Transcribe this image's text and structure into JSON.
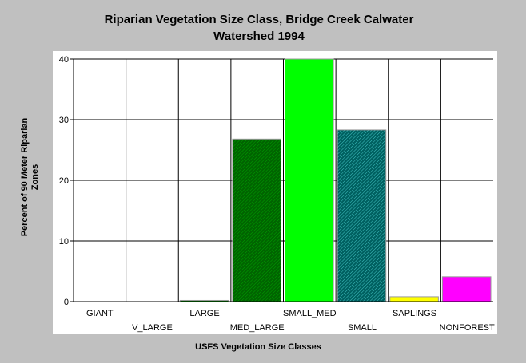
{
  "chart_data": {
    "type": "bar",
    "title_line1": "Riparian Vegetation Size Class, Bridge Creek Calwater",
    "title_line2": "Watershed 1994",
    "xlabel": "USFS Vegetation Size Classes",
    "ylabel_line1": "Percent of 90 Meter Riparian",
    "ylabel_line2": "Zones",
    "ylim": [
      0,
      40
    ],
    "yticks": [
      "0",
      "10",
      "20",
      "30",
      "40"
    ],
    "grid": true,
    "categories": [
      "GIANT",
      "V_LARGE",
      "LARGE",
      "MED_LARGE",
      "SMALL_MED",
      "SMALL",
      "SAPLINGS",
      "NONFOREST"
    ],
    "values": [
      0,
      0,
      0.2,
      26.8,
      40,
      28.3,
      0.8,
      4.1
    ],
    "colors": [
      "#008000",
      "#008000",
      "#008000",
      "#008000",
      "#00ff00",
      "#008080",
      "#ffff00",
      "#ff00ff"
    ],
    "hatched": [
      false,
      false,
      false,
      true,
      false,
      true,
      false,
      false
    ]
  }
}
